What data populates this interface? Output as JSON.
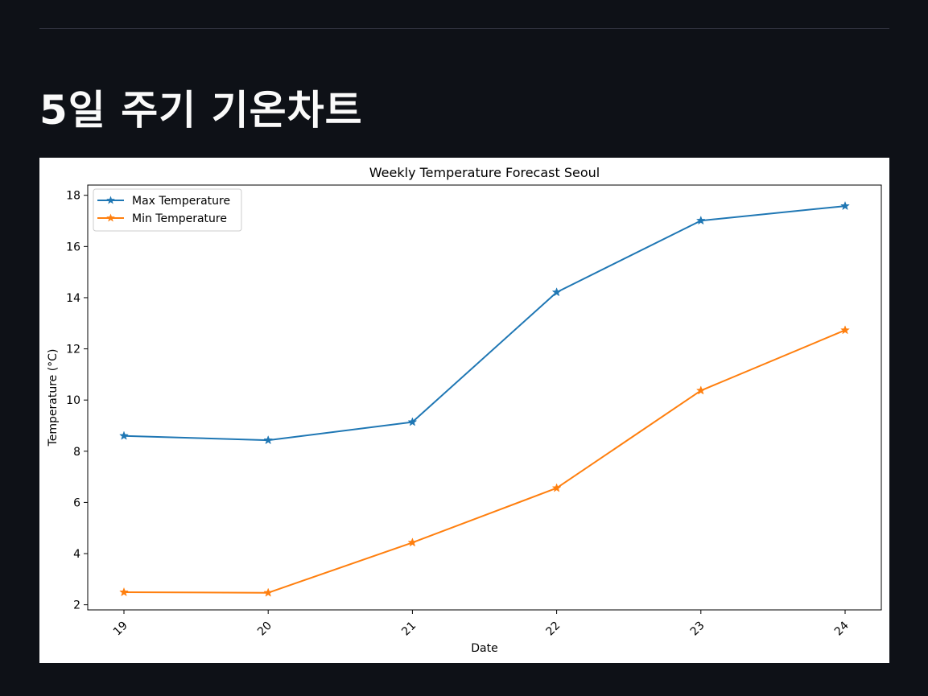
{
  "page": {
    "title": "5일 주기 기온차트"
  },
  "colors": {
    "background": "#0e1117",
    "title_text": "#fafafa",
    "max_series": "#1f77b4",
    "min_series": "#ff7f0e"
  },
  "chart_data": {
    "type": "line",
    "title": "Weekly Temperature Forecast Seoul",
    "xlabel": "Date",
    "ylabel": "Temperature (°C)",
    "x": [
      "19",
      "20",
      "21",
      "22",
      "23",
      "24"
    ],
    "ylim": [
      1.8,
      18.4
    ],
    "yticks": [
      2,
      4,
      6,
      8,
      10,
      12,
      14,
      16,
      18
    ],
    "grid": false,
    "legend_position": "upper-left",
    "marker": "star",
    "series": [
      {
        "name": "Max Temperature",
        "color": "#1f77b4",
        "values": [
          8.6,
          8.43,
          9.14,
          14.21,
          17.01,
          17.58
        ]
      },
      {
        "name": "Min Temperature",
        "color": "#ff7f0e",
        "values": [
          2.49,
          2.47,
          4.43,
          6.56,
          10.37,
          12.73
        ]
      }
    ]
  }
}
